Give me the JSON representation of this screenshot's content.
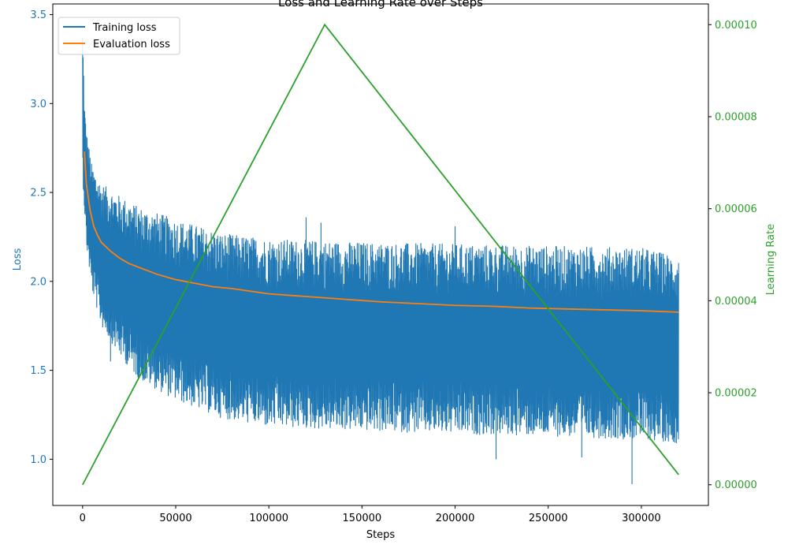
{
  "chart_data": {
    "type": "line",
    "title": "Loss and Learning Rate over Steps",
    "xlabel": "Steps",
    "ylabel_left": "Loss",
    "ylabel_right": "Learning Rate",
    "xlim": [
      -16000,
      336000
    ],
    "ylim_left": [
      0.74,
      3.56
    ],
    "ylim_right": [
      -4.5e-06,
      0.0001045
    ],
    "x_ticks": [
      0,
      50000,
      100000,
      150000,
      200000,
      250000,
      300000
    ],
    "y_left_ticks": [
      1.0,
      1.5,
      2.0,
      2.5,
      3.0,
      3.5
    ],
    "y_left_tick_labels": [
      "1.0",
      "1.5",
      "2.0",
      "2.5",
      "3.0",
      "3.5"
    ],
    "y_right_ticks": [
      0,
      2e-05,
      4e-05,
      6e-05,
      8e-05,
      0.0001
    ],
    "y_right_tick_labels": [
      "0.00000",
      "0.00002",
      "0.00004",
      "0.00006",
      "0.00008",
      "0.00010"
    ],
    "legend": {
      "placement": "top-left",
      "entries": [
        "Training loss",
        "Evaluation loss"
      ]
    },
    "colors": {
      "training": "#1f77b4",
      "evaluation": "#ff7f0e",
      "lr": "#2ca02c",
      "left_axis": "#1f77b4",
      "right_axis": "#2ca02c"
    },
    "series": [
      {
        "name": "Training loss",
        "axis": "left",
        "band": {
          "x": [
            0,
            1000,
            2000,
            5000,
            10000,
            20000,
            30000,
            50000,
            75000,
            100000,
            150000,
            200000,
            250000,
            300000,
            320000
          ],
          "upper": [
            3.43,
            3.0,
            2.85,
            2.65,
            2.55,
            2.48,
            2.42,
            2.35,
            2.27,
            2.24,
            2.22,
            2.21,
            2.2,
            2.19,
            2.14
          ],
          "lower": [
            2.6,
            2.4,
            2.2,
            1.95,
            1.75,
            1.58,
            1.45,
            1.33,
            1.23,
            1.18,
            1.16,
            1.14,
            1.13,
            1.11,
            1.09
          ]
        },
        "outliers": [
          [
            295000,
            0.86
          ],
          [
            120000,
            2.36
          ],
          [
            200000,
            2.31
          ],
          [
            128000,
            2.33
          ],
          [
            222000,
            1.0
          ],
          [
            15000,
            1.55
          ],
          [
            268000,
            1.01
          ]
        ]
      },
      {
        "name": "Evaluation loss",
        "axis": "left",
        "x": [
          1000,
          2000,
          4000,
          6000,
          8000,
          10000,
          15000,
          20000,
          25000,
          30000,
          40000,
          50000,
          60000,
          70000,
          80000,
          100000,
          120000,
          140000,
          160000,
          180000,
          200000,
          220000,
          240000,
          260000,
          280000,
          300000,
          320000
        ],
        "values": [
          2.73,
          2.55,
          2.4,
          2.31,
          2.26,
          2.22,
          2.17,
          2.13,
          2.1,
          2.08,
          2.04,
          2.01,
          1.99,
          1.97,
          1.96,
          1.93,
          1.915,
          1.9,
          1.885,
          1.875,
          1.865,
          1.86,
          1.85,
          1.845,
          1.84,
          1.835,
          1.827
        ]
      },
      {
        "name": "Learning Rate",
        "axis": "right",
        "x": [
          0,
          130000,
          320000
        ],
        "values": [
          0.0,
          0.0001,
          2.2e-06
        ]
      }
    ]
  }
}
